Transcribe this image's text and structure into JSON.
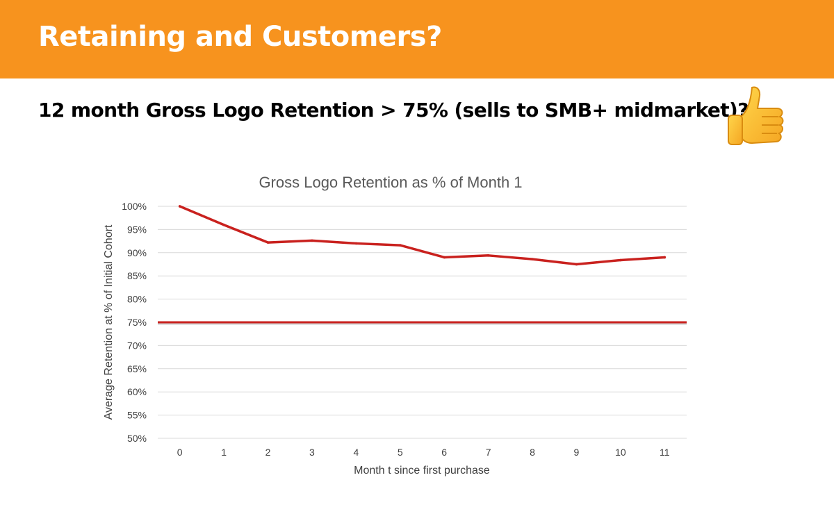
{
  "slide": {
    "title": "Retaining and Customers?",
    "subtitle": "12 month Gross Logo Retention  > 75% (sells to SMB+ midmarket)?",
    "icon": "thumbs-up-icon",
    "accent_color": "#F7931E"
  },
  "chart_data": {
    "type": "line",
    "title": "Gross Logo Retention as % of Month 1",
    "xlabel": "Month t since first purchase",
    "ylabel": "Average Retention at % of Initial Cohort",
    "x": [
      0,
      1,
      2,
      3,
      4,
      5,
      6,
      7,
      8,
      9,
      10,
      11
    ],
    "series": [
      {
        "values": [
          100,
          96,
          92.2,
          92.6,
          92,
          91.6,
          89,
          89.4,
          88.6,
          87.5,
          88.4,
          89
        ],
        "color": "#C9211E"
      }
    ],
    "reference_line": {
      "value": 75,
      "color": "#C9211E"
    },
    "ylim": [
      50,
      100
    ],
    "yticks": [
      "100%",
      "95%",
      "90%",
      "85%",
      "80%",
      "75%",
      "70%",
      "65%",
      "60%",
      "55%",
      "50%"
    ],
    "grid": true,
    "legend": "none"
  }
}
